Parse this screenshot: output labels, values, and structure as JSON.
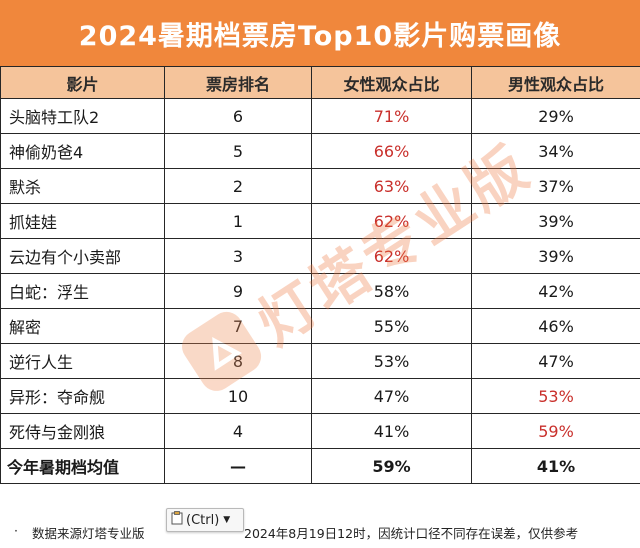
{
  "title": "2024暑期档票房Top10影片购票画像",
  "headers": [
    "影片",
    "票房排名",
    "女性观众占比",
    "男性观众占比"
  ],
  "rows": [
    {
      "film": "头脑特工队2",
      "rank": "6",
      "female": "71%",
      "male": "29%",
      "hl": "female"
    },
    {
      "film": "神偷奶爸4",
      "rank": "5",
      "female": "66%",
      "male": "34%",
      "hl": "female"
    },
    {
      "film": "默杀",
      "rank": "2",
      "female": "63%",
      "male": "37%",
      "hl": "female"
    },
    {
      "film": "抓娃娃",
      "rank": "1",
      "female": "62%",
      "male": "39%",
      "hl": "female"
    },
    {
      "film": "云边有个小卖部",
      "rank": "3",
      "female": "62%",
      "male": "39%",
      "hl": "female"
    },
    {
      "film": "白蛇：浮生",
      "rank": "9",
      "female": "58%",
      "male": "42%",
      "hl": ""
    },
    {
      "film": "解密",
      "rank": "7",
      "female": "55%",
      "male": "46%",
      "hl": ""
    },
    {
      "film": "逆行人生",
      "rank": "8",
      "female": "53%",
      "male": "47%",
      "hl": ""
    },
    {
      "film": "异形：夺命舰",
      "rank": "10",
      "female": "47%",
      "male": "53%",
      "hl": "male"
    },
    {
      "film": "死侍与金刚狼",
      "rank": "4",
      "female": "41%",
      "male": "59%",
      "hl": "male"
    }
  ],
  "average": {
    "label": "今年暑期档均值",
    "rank": "—",
    "female": "59%",
    "male": "41%"
  },
  "footnote": {
    "bullet": "·",
    "left": "数据来源灯塔专业版",
    "right": "2024年8月19日12时，因统计口径不同存在误差，仅供参考"
  },
  "watermark": "灯塔专业版",
  "paste_chip": {
    "label": "(Ctrl)",
    "icon": "clipboard-icon"
  },
  "colors": {
    "title_bg": "#f0873c",
    "header_bg": "#f5c49b",
    "highlight_text": "#c9302c",
    "watermark": "#ef7a42"
  }
}
